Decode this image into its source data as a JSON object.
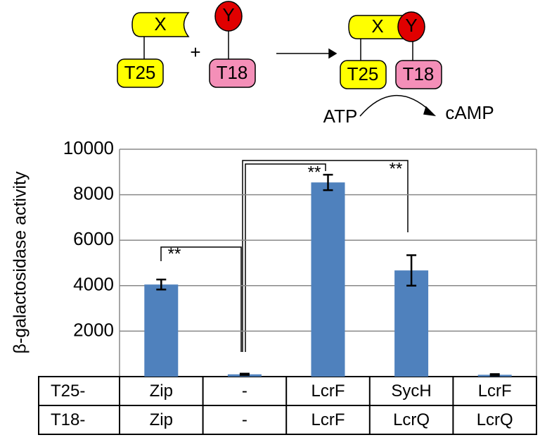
{
  "diagram": {
    "x1": "X",
    "y1": "Y",
    "t25a": "T25",
    "plus": "+",
    "t18a": "T18",
    "x2": "X",
    "y2": "Y",
    "t25b": "T25",
    "t18b": "T18",
    "atp": "ATP",
    "camp": "cAMP"
  },
  "chart_data": {
    "type": "bar",
    "y_label": "β-galactosidase activity",
    "category_row_labels": [
      "T25-",
      "T18-"
    ],
    "categories": [
      [
        "Zip",
        "Zip"
      ],
      [
        "-",
        "-"
      ],
      [
        "LcrF",
        "LcrF"
      ],
      [
        "SycH",
        "LcrQ"
      ],
      [
        "LcrF",
        "LcrQ"
      ]
    ],
    "values": [
      4050,
      100,
      8540,
      4670,
      80
    ],
    "errors": [
      220,
      30,
      340,
      670,
      30
    ],
    "color": "#4f81bd",
    "ylim": [
      0,
      10000
    ],
    "yticks": [
      2000,
      4000,
      6000,
      8000,
      10000
    ],
    "grid": true,
    "annotations": [
      "**",
      "**",
      "**"
    ]
  }
}
